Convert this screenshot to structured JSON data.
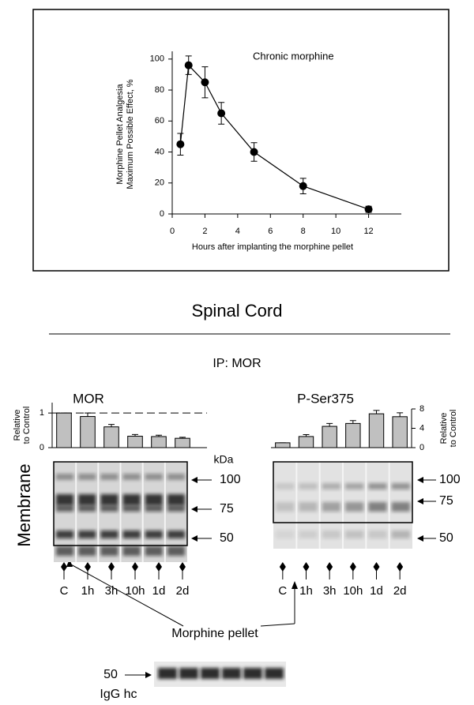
{
  "figure": {
    "section_title": "Spinal Cord",
    "ip_label": "IP: MOR",
    "fraction_label": "Membrane",
    "kda_label": "kDa",
    "mw_markers_mor": [
      100,
      75,
      50
    ],
    "mw_markers_pser": [
      100,
      75,
      50
    ],
    "treatment_label": "Morphine pellet",
    "igg_marker": 50,
    "igg_label": "IgG hc"
  },
  "chart_data": [
    {
      "type": "line",
      "annotation": "Chronic morphine",
      "xlabel": "Hours after implanting the morphine pellet",
      "ylabel": [
        "Morphine Pellet Analgesia",
        "Maximum Possible Effect, %"
      ],
      "x": [
        0.5,
        1,
        2,
        3,
        5,
        8,
        12
      ],
      "values": [
        45,
        96,
        85,
        65,
        40,
        18,
        3
      ],
      "errors": [
        7,
        6,
        10,
        7,
        6,
        5,
        2
      ],
      "color": "#000000",
      "xlim": [
        0,
        14
      ],
      "xticks": [
        0,
        2,
        4,
        6,
        8,
        10,
        12
      ],
      "ylim": [
        0,
        105
      ],
      "yticks": [
        0,
        20,
        40,
        60,
        80,
        100
      ]
    },
    {
      "type": "bar",
      "title": "MOR",
      "ylabel": [
        "Relative",
        "to Control"
      ],
      "axis_side": "left",
      "categories": [
        "C",
        "1h",
        "3h",
        "10h",
        "1d",
        "2d"
      ],
      "values": [
        1,
        0.9,
        0.6,
        0.33,
        0.32,
        0.27
      ],
      "errors": [
        0,
        0.1,
        0.07,
        0.05,
        0.04,
        0.03
      ],
      "color": "#c0c0c0",
      "reference_line": 1,
      "ylim": [
        0,
        1.3
      ],
      "yticks": [
        0,
        1
      ]
    },
    {
      "type": "bar",
      "title": "P-Ser375",
      "ylabel": [
        "Relative",
        "to Control"
      ],
      "axis_side": "right",
      "categories": [
        "C",
        "1h",
        "3h",
        "10h",
        "1d",
        "2d"
      ],
      "values": [
        1,
        2.3,
        4.4,
        5,
        7,
        6.4
      ],
      "errors": [
        0,
        0.4,
        0.6,
        0.6,
        0.7,
        0.8
      ],
      "color": "#c0c0c0",
      "ylim": [
        0,
        8
      ],
      "yticks": [
        0,
        4,
        8
      ]
    }
  ]
}
